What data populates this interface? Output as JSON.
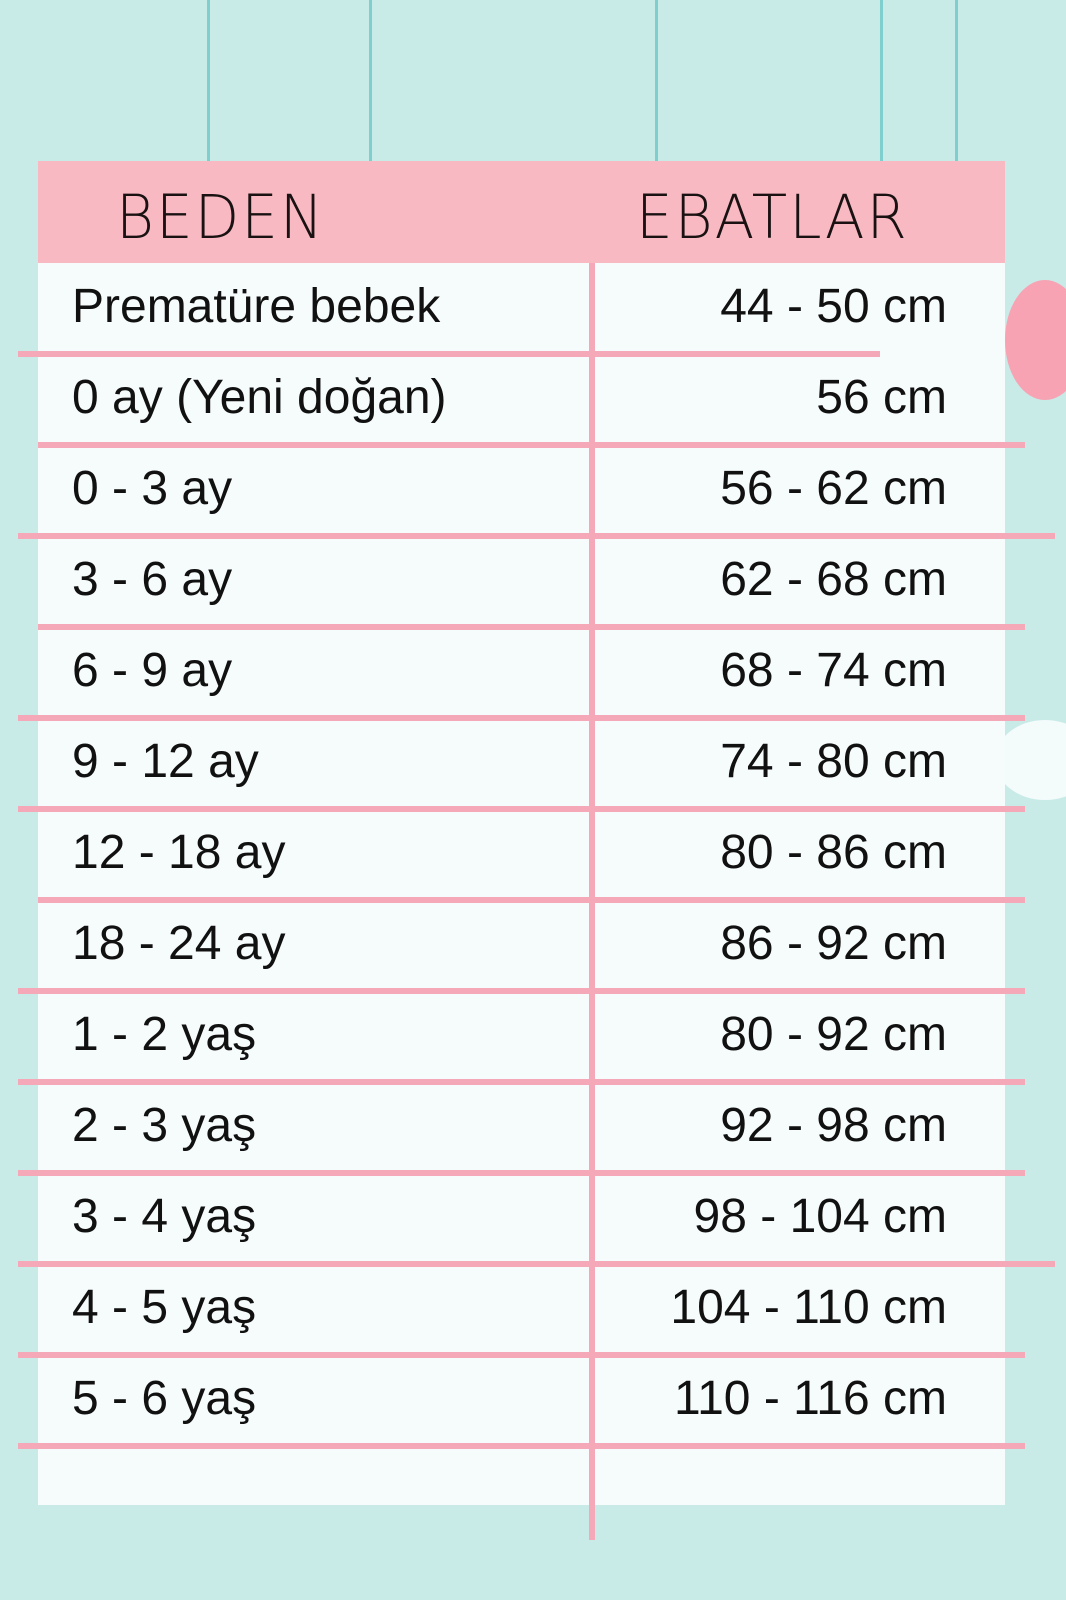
{
  "header": {
    "size_label": "BEDEN",
    "measure_label": "EBATLAR"
  },
  "colors": {
    "background": "#c8ebe8",
    "header": "#f9b9c3",
    "lines": "#f5a9b8",
    "card": "#f6fbfb"
  },
  "rows": [
    {
      "size": "Prematüre bebek",
      "measure": "44 - 50 cm"
    },
    {
      "size": "0 ay (Yeni doğan)",
      "measure": "56 cm"
    },
    {
      "size": "0 - 3 ay",
      "measure": "56 - 62 cm"
    },
    {
      "size": "3 - 6 ay",
      "measure": "62 - 68 cm"
    },
    {
      "size": "6 - 9 ay",
      "measure": "68 - 74 cm"
    },
    {
      "size": "9 - 12 ay",
      "measure": "74 - 80 cm"
    },
    {
      "size": "12 - 18 ay",
      "measure": "80 - 86 cm"
    },
    {
      "size": "18 - 24 ay",
      "measure": "86 - 92 cm"
    },
    {
      "size": "1 - 2 yaş",
      "measure": "80 - 92 cm"
    },
    {
      "size": "2 - 3 yaş",
      "measure": "92 - 98 cm"
    },
    {
      "size": "3 - 4 yaş",
      "measure": "98 - 104 cm"
    },
    {
      "size": "4 - 5 yaş",
      "measure": "104 - 110 cm"
    },
    {
      "size": "5 - 6 yaş",
      "measure": "110 - 116 cm"
    }
  ]
}
